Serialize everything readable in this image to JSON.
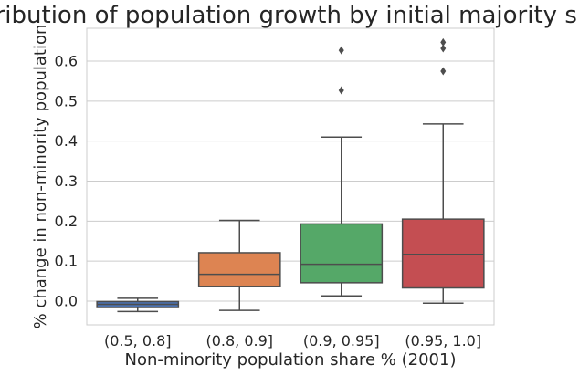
{
  "chart_data": {
    "type": "box",
    "title": "Distribution of population growth by initial majority share",
    "xlabel": "Non-minority population share % (2001)",
    "ylabel": "% change in non-minority population",
    "ylim": [
      -0.06,
      0.685
    ],
    "yticks": [
      "0.0",
      "0.1",
      "0.2",
      "0.3",
      "0.4",
      "0.5",
      "0.6"
    ],
    "grid": true,
    "categories": [
      "(0.5, 0.8]",
      "(0.8, 0.9]",
      "(0.9, 0.95]",
      "(0.95, 1.0]"
    ],
    "boxes": [
      {
        "category": "(0.5, 0.8]",
        "whisker_low": -0.026,
        "q1": -0.016,
        "median": -0.008,
        "q3": -0.001,
        "whisker_high": 0.007,
        "outliers": [],
        "color": "#4c72b0"
      },
      {
        "category": "(0.8, 0.9]",
        "whisker_low": -0.023,
        "q1": 0.036,
        "median": 0.067,
        "q3": 0.121,
        "whisker_high": 0.202,
        "outliers": [],
        "color": "#dd8452"
      },
      {
        "category": "(0.9, 0.95]",
        "whisker_low": 0.013,
        "q1": 0.046,
        "median": 0.092,
        "q3": 0.193,
        "whisker_high": 0.41,
        "outliers": [
          0.527,
          0.627
        ],
        "color": "#55a868"
      },
      {
        "category": "(0.95, 1.0]",
        "whisker_low": -0.005,
        "q1": 0.033,
        "median": 0.117,
        "q3": 0.205,
        "whisker_high": 0.443,
        "outliers": [
          0.575,
          0.632,
          0.647
        ],
        "color": "#c44e52"
      }
    ]
  }
}
